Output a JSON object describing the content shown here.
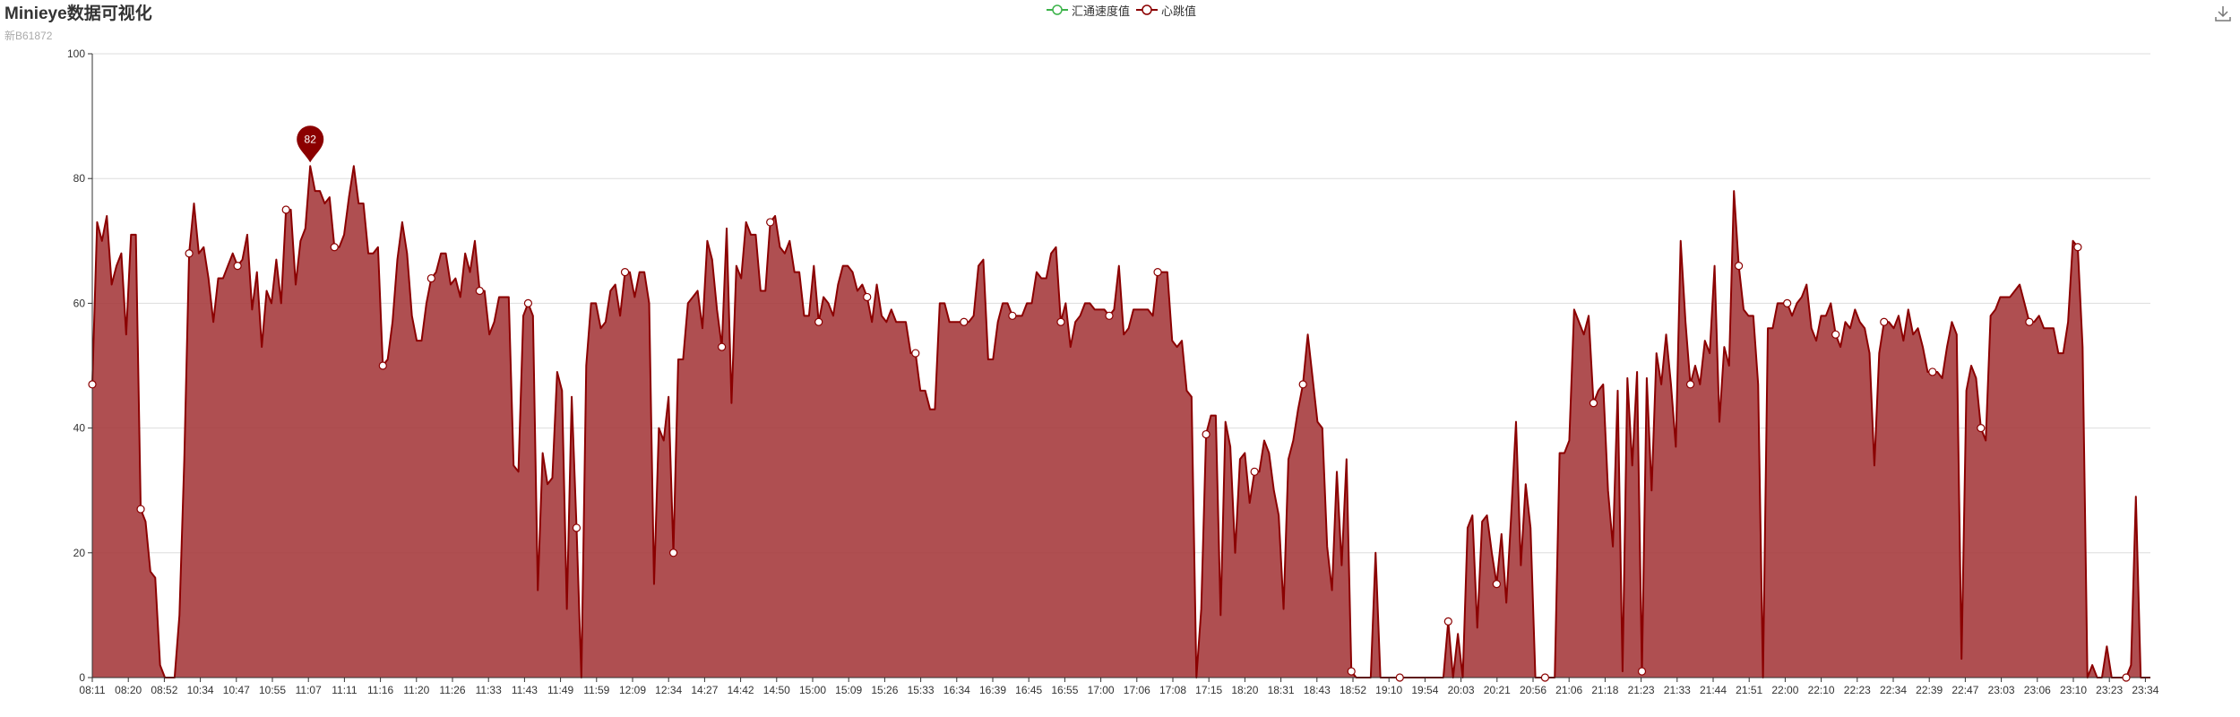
{
  "header": {
    "title": "Minieye数据可视化",
    "subtitle": "新B61872"
  },
  "toolbar": {
    "download_icon": "download-icon"
  },
  "colors": {
    "speed": "#3cb34a",
    "heart": "#8b0000",
    "area": "#a63c3e",
    "axis": "#333333",
    "grid": "#dddddd"
  },
  "chart_data": {
    "type": "area",
    "title": "Minieye数据可视化",
    "xlabel": "",
    "ylabel": "",
    "ylim": [
      0,
      100
    ],
    "yticks": [
      0,
      20,
      40,
      60,
      80,
      100
    ],
    "grid": true,
    "legend_position": "top-center",
    "legend": [
      "汇通速度值",
      "心跳值"
    ],
    "x_tick_labels": [
      "08:11",
      "08:20",
      "08:52",
      "10:34",
      "10:47",
      "10:55",
      "11:07",
      "11:11",
      "11:16",
      "11:20",
      "11:26",
      "11:33",
      "11:43",
      "11:49",
      "11:59",
      "12:09",
      "12:34",
      "14:27",
      "14:42",
      "14:50",
      "15:00",
      "15:09",
      "15:26",
      "15:33",
      "16:34",
      "16:39",
      "16:45",
      "16:55",
      "17:00",
      "17:06",
      "17:08",
      "17:15",
      "18:20",
      "18:31",
      "18:43",
      "18:52",
      "19:10",
      "19:54",
      "20:03",
      "20:21",
      "20:56",
      "21:06",
      "21:18",
      "21:23",
      "21:33",
      "21:44",
      "21:51",
      "22:00",
      "22:10",
      "22:23",
      "22:34",
      "22:39",
      "22:47",
      "23:03",
      "23:06",
      "23:10",
      "23:23",
      "23:34"
    ],
    "max_marker": {
      "value": 82
    },
    "series": [
      {
        "name": "汇通速度值",
        "values": []
      },
      {
        "name": "心跳值",
        "values": [
          47,
          73,
          70,
          74,
          63,
          66,
          68,
          55,
          71,
          71,
          27,
          25,
          17,
          16,
          2,
          0,
          0,
          0,
          10,
          35,
          68,
          76,
          68,
          69,
          64,
          57,
          64,
          64,
          66,
          68,
          66,
          67,
          71,
          59,
          65,
          53,
          62,
          60,
          67,
          60,
          75,
          75,
          63,
          70,
          72,
          82,
          78,
          78,
          76,
          77,
          69,
          69,
          71,
          77,
          82,
          76,
          76,
          68,
          68,
          69,
          50,
          51,
          57,
          67,
          73,
          68,
          58,
          54,
          54,
          60,
          64,
          65,
          68,
          68,
          63,
          64,
          61,
          68,
          65,
          70,
          62,
          62,
          55,
          57,
          61,
          61,
          61,
          34,
          33,
          58,
          60,
          58,
          14,
          36,
          31,
          32,
          49,
          46,
          11,
          45,
          24,
          0,
          50,
          60,
          60,
          56,
          57,
          62,
          63,
          58,
          65,
          65,
          61,
          65,
          65,
          60,
          15,
          40,
          38,
          45,
          20,
          51,
          51,
          60,
          61,
          62,
          56,
          70,
          67,
          59,
          53,
          72,
          44,
          66,
          64,
          73,
          71,
          71,
          62,
          62,
          73,
          74,
          69,
          68,
          70,
          65,
          65,
          58,
          58,
          66,
          57,
          61,
          60,
          58,
          63,
          66,
          66,
          65,
          62,
          63,
          61,
          57,
          63,
          58,
          57,
          59,
          57,
          57,
          57,
          52,
          52,
          46,
          46,
          43,
          43,
          60,
          60,
          57,
          57,
          57,
          57,
          57,
          58,
          66,
          67,
          51,
          51,
          57,
          60,
          60,
          58,
          58,
          58,
          60,
          60,
          65,
          64,
          64,
          68,
          69,
          57,
          60,
          53,
          57,
          58,
          60,
          60,
          59,
          59,
          59,
          58,
          59,
          66,
          55,
          56,
          59,
          59,
          59,
          59,
          58,
          65,
          65,
          65,
          54,
          53,
          54,
          46,
          45,
          0,
          11,
          39,
          42,
          42,
          10,
          41,
          37,
          20,
          35,
          36,
          28,
          33,
          33,
          38,
          36,
          30,
          26,
          11,
          35,
          38,
          43,
          47,
          55,
          48,
          41,
          40,
          21,
          14,
          33,
          18,
          35,
          1,
          0,
          0,
          0,
          0,
          20,
          0,
          0,
          0,
          0,
          0,
          0,
          0,
          0,
          0,
          0,
          0,
          0,
          0,
          0,
          9,
          0,
          7,
          0,
          24,
          26,
          8,
          25,
          26,
          20,
          15,
          23,
          12,
          26,
          41,
          18,
          31,
          24,
          0,
          0,
          0,
          0,
          0,
          36,
          36,
          38,
          59,
          57,
          55,
          58,
          44,
          46,
          47,
          30,
          21,
          46,
          1,
          48,
          34,
          49,
          1,
          48,
          30,
          52,
          47,
          55,
          47,
          37,
          70,
          57,
          47,
          50,
          47,
          54,
          52,
          66,
          41,
          53,
          50,
          78,
          66,
          59,
          58,
          58,
          47,
          0,
          56,
          56,
          60,
          60,
          60,
          58,
          60,
          61,
          63,
          56,
          54,
          58,
          58,
          60,
          55,
          53,
          57,
          56,
          59,
          57,
          56,
          52,
          34,
          52,
          57,
          57,
          56,
          58,
          54,
          59,
          55,
          56,
          53,
          49,
          49,
          49,
          48,
          53,
          57,
          55,
          3,
          46,
          50,
          48,
          40,
          38,
          58,
          59,
          61,
          61,
          61,
          62,
          63,
          60,
          57,
          57,
          58,
          56,
          56,
          56,
          52,
          52,
          57,
          70,
          69,
          53,
          0,
          2,
          0,
          0,
          5,
          0,
          0,
          0,
          0,
          2,
          29,
          0,
          0,
          0
        ]
      }
    ]
  }
}
